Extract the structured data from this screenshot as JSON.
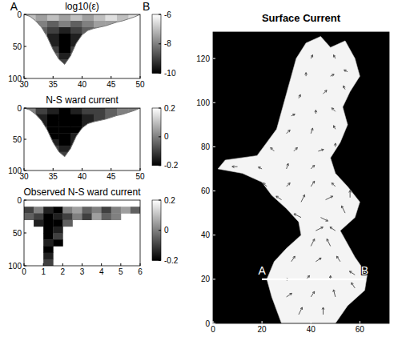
{
  "chart_data": [
    {
      "type": "heatmap",
      "title": "log10(ε)",
      "section_labels": [
        "A",
        "B"
      ],
      "xlim": [
        30,
        50
      ],
      "xticks": [
        30,
        35,
        40,
        45,
        50
      ],
      "ylim": [
        0,
        100
      ],
      "yticks": [
        0,
        50,
        100
      ],
      "x_edges": [
        30,
        32,
        34,
        36,
        38,
        40,
        42,
        44,
        46,
        48,
        50
      ],
      "y_edges": [
        0,
        10,
        20,
        30,
        40,
        50,
        60,
        70,
        80
      ],
      "cells": [
        [
          -7,
          -7.5,
          -7,
          -7.5,
          -7,
          -7.5,
          -7,
          -6.5,
          -7,
          -6.5
        ],
        [
          null,
          -8,
          -8.5,
          -8,
          -8.5,
          -8,
          -7.5,
          -7.5,
          -7,
          null
        ],
        [
          null,
          -8.5,
          -9,
          -9.5,
          -9,
          -8.5,
          -8,
          null,
          null,
          null
        ],
        [
          null,
          -8,
          -9.5,
          -10,
          -9.5,
          -8,
          null,
          null,
          null,
          null
        ],
        [
          null,
          null,
          -9.5,
          -10,
          -9.5,
          null,
          null,
          null,
          null,
          null
        ],
        [
          null,
          null,
          -9,
          -10,
          -9,
          null,
          null,
          null,
          null,
          null
        ],
        [
          null,
          null,
          -8.5,
          -9.5,
          -8.5,
          null,
          null,
          null,
          null,
          null
        ],
        [
          null,
          null,
          null,
          -9,
          null,
          null,
          null,
          null,
          null,
          null
        ]
      ],
      "bottom": {
        "x": [
          30,
          31,
          32,
          33,
          34,
          35,
          36,
          37,
          38,
          39,
          40,
          41,
          42,
          43,
          44,
          45,
          46,
          47,
          48,
          49,
          50
        ],
        "y": [
          0,
          3,
          10,
          20,
          35,
          55,
          70,
          78,
          65,
          45,
          32,
          25,
          22,
          20,
          18,
          15,
          12,
          10,
          7,
          4,
          0
        ]
      },
      "colorbar": {
        "range": [
          -10,
          -6
        ],
        "ticks": [
          -6,
          -8,
          -10
        ]
      }
    },
    {
      "type": "heatmap",
      "title": "N-S ward current",
      "xlim": [
        30,
        50
      ],
      "xticks": [
        30,
        35,
        40,
        45,
        50
      ],
      "ylim": [
        0,
        100
      ],
      "yticks": [
        0,
        50,
        100
      ],
      "x_edges": [
        30,
        32,
        34,
        36,
        38,
        40,
        42,
        44,
        46,
        48,
        50
      ],
      "y_edges": [
        0,
        10,
        20,
        30,
        40,
        50,
        60,
        70,
        80
      ],
      "cells": [
        [
          0,
          -0.1,
          -0.15,
          -0.2,
          -0.15,
          -0.1,
          -0.1,
          -0.05,
          0,
          0
        ],
        [
          null,
          -0.15,
          -0.2,
          -0.2,
          -0.2,
          -0.15,
          -0.1,
          -0.05,
          0,
          null
        ],
        [
          null,
          -0.15,
          -0.2,
          -0.2,
          -0.2,
          -0.15,
          -0.1,
          null,
          null,
          null
        ],
        [
          null,
          -0.1,
          -0.2,
          -0.2,
          -0.2,
          -0.1,
          null,
          null,
          null,
          null
        ],
        [
          null,
          null,
          -0.2,
          -0.2,
          -0.15,
          null,
          null,
          null,
          null,
          null
        ],
        [
          null,
          null,
          -0.15,
          -0.2,
          -0.15,
          null,
          null,
          null,
          null,
          null
        ],
        [
          null,
          null,
          -0.1,
          -0.15,
          -0.1,
          null,
          null,
          null,
          null,
          null
        ],
        [
          null,
          null,
          null,
          -0.1,
          null,
          null,
          null,
          null,
          null,
          null
        ]
      ],
      "bottom": {
        "x": [
          30,
          31,
          32,
          33,
          34,
          35,
          36,
          37,
          38,
          39,
          40,
          41,
          42,
          43,
          44,
          45,
          46,
          47,
          48,
          49,
          50
        ],
        "y": [
          0,
          3,
          10,
          20,
          35,
          55,
          70,
          78,
          65,
          45,
          32,
          25,
          22,
          20,
          18,
          15,
          12,
          10,
          7,
          4,
          0
        ]
      },
      "colorbar": {
        "range": [
          -0.2,
          0.2
        ],
        "ticks": [
          0.2,
          0,
          -0.2
        ]
      }
    },
    {
      "type": "heatmap",
      "title": "Observed N-S ward current",
      "xlim": [
        0,
        6
      ],
      "xticks": [
        0,
        1,
        2,
        3,
        4,
        5,
        6
      ],
      "ylim": [
        0,
        100
      ],
      "yticks": [
        0,
        50,
        100
      ],
      "x_edges": [
        0,
        0.5,
        1,
        1.5,
        2,
        2.5,
        3,
        3.5,
        4,
        4.5,
        5,
        5.5,
        6
      ],
      "y_edges": [
        0,
        10,
        20,
        30,
        40,
        50,
        60,
        70,
        80,
        90,
        100
      ],
      "cells": [
        [
          null,
          null,
          null,
          null,
          null,
          null,
          null,
          null,
          null,
          null,
          null,
          null
        ],
        [
          -0.1,
          0,
          -0.15,
          -0.2,
          0,
          0.05,
          -0.05,
          0,
          -0.1,
          0,
          0.05,
          -0.05
        ],
        [
          -0.05,
          -0.1,
          -0.2,
          -0.15,
          -0.1,
          0,
          -0.1,
          0.05,
          -0.05,
          0,
          null,
          null
        ],
        [
          null,
          -0.15,
          -0.2,
          -0.2,
          -0.05,
          null,
          null,
          null,
          null,
          null,
          null,
          null
        ],
        [
          null,
          null,
          -0.2,
          -0.15,
          null,
          null,
          null,
          null,
          null,
          null,
          null,
          null
        ],
        [
          null,
          null,
          -0.2,
          -0.1,
          null,
          null,
          null,
          null,
          null,
          null,
          null,
          null
        ],
        [
          null,
          null,
          -0.15,
          -0.2,
          null,
          null,
          null,
          null,
          null,
          null,
          null,
          null
        ],
        [
          null,
          null,
          -0.2,
          null,
          null,
          null,
          null,
          null,
          null,
          null,
          null,
          null
        ],
        [
          null,
          null,
          -0.15,
          null,
          null,
          null,
          null,
          null,
          null,
          null,
          null,
          null
        ],
        [
          null,
          null,
          -0.1,
          null,
          null,
          null,
          null,
          null,
          null,
          null,
          null,
          null
        ]
      ],
      "colorbar": {
        "range": [
          -0.2,
          0.2
        ],
        "ticks": [
          0.2,
          0,
          -0.2
        ]
      }
    },
    {
      "type": "vector",
      "title": "Surface Current",
      "xlim": [
        0,
        72
      ],
      "xticks": [
        0,
        20,
        40,
        60
      ],
      "ylim": [
        0,
        132
      ],
      "yticks": [
        0,
        20,
        40,
        60,
        80,
        100,
        120
      ],
      "water": {
        "x": [
          28,
          50,
          55,
          62,
          63,
          58,
          55,
          52,
          58,
          60,
          55,
          50,
          48,
          52,
          55,
          53,
          56,
          60,
          58,
          54,
          48,
          44,
          38,
          34,
          32,
          30,
          28,
          26,
          22,
          18,
          5,
          2,
          12,
          20,
          24,
          30,
          35,
          36,
          30,
          25,
          22,
          24,
          26
        ],
        "y": [
          0,
          0,
          8,
          15,
          22,
          30,
          36,
          42,
          48,
          55,
          62,
          68,
          75,
          82,
          90,
          98,
          105,
          112,
          120,
          128,
          125,
          130,
          127,
          120,
          112,
          104,
          96,
          88,
          82,
          76,
          74,
          70,
          68,
          64,
          58,
          52,
          46,
          40,
          34,
          28,
          20,
          12,
          6
        ]
      },
      "vectors": {
        "x": [
          35,
          45,
          30,
          40,
          50,
          58,
          28,
          38,
          48,
          58,
          32,
          42,
          52,
          40,
          48,
          42,
          50,
          36,
          44,
          54,
          28,
          36,
          46,
          56,
          22,
          30,
          40,
          50,
          10,
          20,
          30,
          40,
          25,
          33,
          43,
          50,
          30,
          40,
          50,
          32,
          42,
          50,
          35,
          45,
          54,
          38,
          48,
          55,
          40,
          50
        ],
        "y": [
          4,
          4,
          12,
          12,
          12,
          16,
          20,
          20,
          20,
          22,
          28,
          28,
          28,
          35,
          35,
          42,
          42,
          48,
          48,
          50,
          56,
          55,
          56,
          57,
          62,
          62,
          62,
          62,
          71,
          70,
          70,
          70,
          78,
          78,
          78,
          80,
          86,
          86,
          88,
          94,
          95,
          96,
          102,
          104,
          106,
          112,
          112,
          114,
          120,
          120
        ],
        "u": [
          0.1,
          0,
          0.15,
          0.1,
          -0.05,
          -0.1,
          0.2,
          0.1,
          0,
          -0.15,
          0.1,
          0.15,
          -0.1,
          0.1,
          -0.1,
          0.2,
          -0.15,
          -0.2,
          0.2,
          -0.1,
          -0.15,
          0.1,
          0.2,
          0,
          -0.1,
          0.1,
          0.1,
          -0.1,
          -0.15,
          -0.1,
          0.05,
          0.1,
          -0.1,
          0.1,
          0.15,
          0,
          0.1,
          0.05,
          -0.05,
          0.1,
          0,
          -0.1,
          0.05,
          0.1,
          -0.05,
          0,
          0.1,
          -0.1,
          0.05,
          -0.05
        ],
        "v": [
          0.2,
          0.2,
          0.1,
          0.15,
          0.2,
          0.15,
          0,
          0.1,
          0.1,
          0.1,
          0.15,
          0.1,
          0.15,
          0.2,
          0.2,
          0.1,
          0.1,
          0.1,
          -0.1,
          0.2,
          0.1,
          0.2,
          0.1,
          0.2,
          0.1,
          0.1,
          0.15,
          0.1,
          0,
          0.05,
          0.15,
          0.1,
          0.1,
          0.1,
          0.05,
          0.1,
          0.1,
          0.15,
          0.1,
          0.05,
          0.1,
          0.1,
          0.1,
          0.1,
          0.1,
          0.1,
          0.05,
          0.05,
          0.1,
          0.1
        ]
      },
      "section": {
        "x": [
          20,
          62
        ],
        "y": [
          20,
          20
        ]
      },
      "section_labels": [
        "A",
        "B"
      ]
    }
  ]
}
